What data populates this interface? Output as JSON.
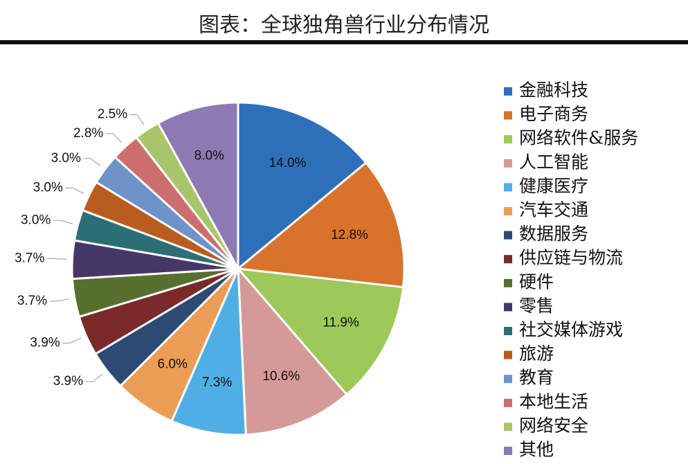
{
  "chart_data": {
    "type": "pie",
    "title": "图表：全球独角兽行业分布情况",
    "slices": [
      {
        "name": "金融科技",
        "value": 14.0,
        "label": "14.0%",
        "color": "#2E6FBA"
      },
      {
        "name": "电子商务",
        "value": 12.8,
        "label": "12.8%",
        "color": "#D9732C"
      },
      {
        "name": "网络软件&服务",
        "value": 11.9,
        "label": "11.9%",
        "color": "#9DC85A"
      },
      {
        "name": "人工智能",
        "value": 10.6,
        "label": "10.6%",
        "color": "#D59A97"
      },
      {
        "name": "健康医疗",
        "value": 7.3,
        "label": "7.3%",
        "color": "#4FAFE4"
      },
      {
        "name": "汽车交通",
        "value": 6.0,
        "label": "6.0%",
        "color": "#EC9D55"
      },
      {
        "name": "数据服务",
        "value": 3.9,
        "label": "3.9%",
        "color": "#2D4A73"
      },
      {
        "name": "供应链与物流",
        "value": 3.9,
        "label": "3.9%",
        "color": "#7A2A2A"
      },
      {
        "name": "硬件",
        "value": 3.7,
        "label": "3.7%",
        "color": "#57702F"
      },
      {
        "name": "零售",
        "value": 3.7,
        "label": "3.7%",
        "color": "#463866"
      },
      {
        "name": "社交媒体游戏",
        "value": 3.0,
        "label": "3.0%",
        "color": "#2C6E76"
      },
      {
        "name": "旅游",
        "value": 3.0,
        "label": "3.0%",
        "color": "#B85D1F"
      },
      {
        "name": "教育",
        "value": 3.0,
        "label": "3.0%",
        "color": "#6E93C9"
      },
      {
        "name": "本地生活",
        "value": 2.8,
        "label": "2.8%",
        "color": "#CD6E6E"
      },
      {
        "name": "网络安全",
        "value": 2.5,
        "label": "2.5%",
        "color": "#A9C56B"
      },
      {
        "name": "其他",
        "value": 8.0,
        "label": "8.0%",
        "color": "#8E7AB2"
      }
    ],
    "legend_position": "right"
  }
}
